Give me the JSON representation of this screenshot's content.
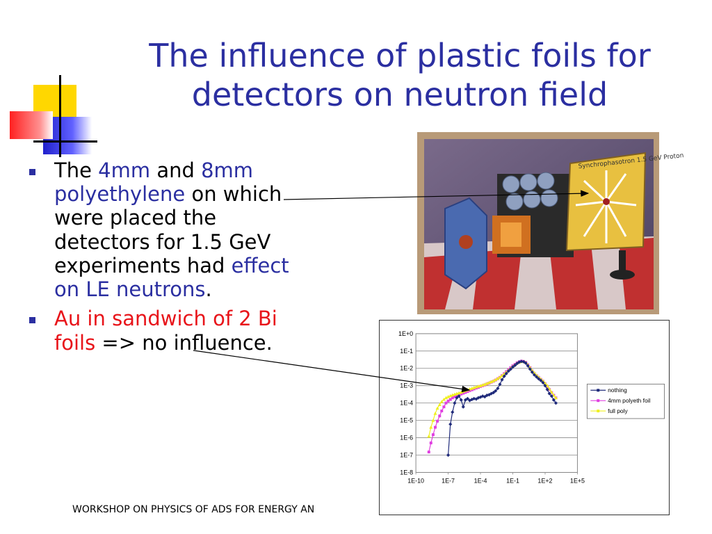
{
  "slide": {
    "title": "The influence of plastic foils for detectors on neutron field",
    "bullets": [
      {
        "parts": [
          {
            "text": "The ",
            "color": "black"
          },
          {
            "text": "4mm",
            "color": "blue"
          },
          {
            "text": " and ",
            "color": "black"
          },
          {
            "text": "8mm polyethylene",
            "color": "blue"
          },
          {
            "text": " on which were placed the detectors for 1.5 GeV experiments had ",
            "color": "black"
          },
          {
            "text": "effect on LE neutrons",
            "color": "blue"
          },
          {
            "text": ".",
            "color": "black"
          }
        ]
      },
      {
        "parts": [
          {
            "text": "Au in sandwich of 2 Bi foils",
            "color": "red"
          },
          {
            "text": " => no influence.",
            "color": "black"
          }
        ]
      }
    ],
    "photo_label": "Synchrophasotron 1.5 GeV Proton",
    "footer": "WORKSHOP ON PHYSICS OF ADS FOR ENERGY AN",
    "colors": {
      "title": "#2b2fa1",
      "highlight_blue": "#2b2fa1",
      "highlight_red": "#e8141a"
    }
  },
  "chart_data": {
    "type": "line",
    "title": "",
    "xlabel": "",
    "ylabel": "",
    "x_scale": "log",
    "y_scale": "log",
    "xlim": [
      1e-10,
      100000.0
    ],
    "ylim": [
      1e-08,
      1
    ],
    "x_ticks": [
      "1E-10",
      "1E-7",
      "1E-4",
      "1E-1",
      "1E+2",
      "1E+5"
    ],
    "y_ticks": [
      "1E+0",
      "1E-1",
      "1E-2",
      "1E-3",
      "1E-4",
      "1E-5",
      "1E-6",
      "1E-7",
      "1E-8"
    ],
    "grid": "horizontal",
    "legend": "right",
    "series": [
      {
        "name": "nothing",
        "color": "#1f2a7a",
        "marker": "diamond",
        "x": [
          1e-07,
          1.6e-07,
          2.5e-07,
          4e-07,
          6.3e-07,
          1e-06,
          1.6e-06,
          2.5e-06,
          4e-06,
          6.3e-06,
          1e-05,
          1.6e-05,
          2.5e-05,
          4e-05,
          6.3e-05,
          0.0001,
          0.00016,
          0.00025,
          0.0004,
          0.00063,
          0.001,
          0.0016,
          0.0025,
          0.004,
          0.0063,
          0.01,
          0.016,
          0.025,
          0.04,
          0.063,
          0.1,
          0.16,
          0.25,
          0.4,
          0.63,
          1,
          1.6,
          2.5,
          4,
          6.3,
          10,
          16,
          25,
          40,
          63,
          100,
          160,
          250,
          400,
          630,
          1000
        ],
        "y": [
          1e-07,
          6e-06,
          3e-05,
          0.0001,
          0.0002,
          0.00025,
          0.00015,
          6e-05,
          0.00015,
          0.00018,
          0.00014,
          0.00016,
          0.00018,
          0.00017,
          0.0002,
          0.00022,
          0.00025,
          0.00023,
          0.00028,
          0.0003,
          0.00035,
          0.0004,
          0.0005,
          0.0007,
          0.0012,
          0.0022,
          0.0035,
          0.005,
          0.007,
          0.009,
          0.012,
          0.015,
          0.019,
          0.023,
          0.025,
          0.024,
          0.02,
          0.014,
          0.009,
          0.006,
          0.0042,
          0.0032,
          0.0025,
          0.002,
          0.0015,
          0.001,
          0.0006,
          0.00035,
          0.00025,
          0.00015,
          0.0001
        ]
      },
      {
        "name": "4mm polyeth foil",
        "color": "#e040e0",
        "marker": "square",
        "x": [
          1.6e-09,
          2.5e-09,
          4e-09,
          6.3e-09,
          1e-08,
          1.6e-08,
          2.5e-08,
          4e-08,
          6.3e-08,
          1e-07,
          1.6e-07,
          2.5e-07,
          4e-07,
          6.3e-07,
          1e-06,
          1.6e-06,
          2.5e-06,
          4e-06,
          6.3e-06,
          1e-05,
          1.6e-05,
          2.5e-05,
          4e-05,
          6.3e-05,
          0.0001,
          0.00016,
          0.00025,
          0.0004,
          0.00063,
          0.001,
          0.0016,
          0.0025,
          0.004,
          0.0063,
          0.01,
          0.016,
          0.025,
          0.04,
          0.063,
          0.1,
          0.16,
          0.25,
          0.4,
          0.63,
          1,
          1.6,
          2.5,
          4,
          6.3,
          10,
          16,
          25,
          40,
          63,
          100,
          160,
          250,
          400,
          630,
          1000
        ],
        "y": [
          1.5e-07,
          5e-07,
          1.5e-06,
          4e-06,
          9e-06,
          1.8e-05,
          3.5e-05,
          6e-05,
          0.0001,
          0.00013,
          0.00016,
          0.0002,
          0.00023,
          0.00026,
          0.0003,
          0.00033,
          0.00037,
          0.00041,
          0.00046,
          0.00052,
          0.00058,
          0.00065,
          0.00073,
          0.0008,
          0.0009,
          0.001,
          0.0011,
          0.00125,
          0.0014,
          0.0016,
          0.0018,
          0.0021,
          0.0025,
          0.003,
          0.0038,
          0.005,
          0.0065,
          0.0085,
          0.011,
          0.014,
          0.017,
          0.021,
          0.024,
          0.026,
          0.025,
          0.022,
          0.016,
          0.011,
          0.007,
          0.005,
          0.0038,
          0.003,
          0.0023,
          0.0018,
          0.0013,
          0.0009,
          0.0006,
          0.0004,
          0.00028,
          0.0002
        ]
      },
      {
        "name": "full poly",
        "color": "#f0f020",
        "marker": "triangle",
        "x": [
          1.6e-09,
          2.5e-09,
          4e-09,
          6.3e-09,
          1e-08,
          1.6e-08,
          2.5e-08,
          4e-08,
          6.3e-08,
          1e-07,
          1.6e-07,
          2.5e-07,
          4e-07,
          6.3e-07,
          1e-06,
          1.6e-06,
          2.5e-06,
          4e-06,
          6.3e-06,
          1e-05,
          1.6e-05,
          2.5e-05,
          4e-05,
          6.3e-05,
          0.0001,
          0.00016,
          0.00025,
          0.0004,
          0.00063,
          0.001,
          0.0016,
          0.0025,
          0.004,
          0.0063,
          0.01,
          0.016,
          0.025,
          0.04,
          0.063,
          0.1,
          0.16,
          0.25,
          0.4,
          0.63,
          1,
          1.6,
          2.5,
          4,
          6.3,
          10,
          16,
          25,
          40,
          63,
          100,
          160,
          250,
          400,
          630,
          1000
        ],
        "y": [
          1.2e-06,
          4e-06,
          1e-05,
          2.5e-05,
          5e-05,
          8e-05,
          0.00012,
          0.00016,
          0.0002,
          0.00023,
          0.00026,
          0.00029,
          0.00032,
          0.00035,
          0.00038,
          0.00042,
          0.00047,
          0.00052,
          0.00058,
          0.00064,
          0.0007,
          0.00077,
          0.00085,
          0.00093,
          0.001,
          0.0011,
          0.0012,
          0.00135,
          0.0015,
          0.0017,
          0.0019,
          0.0022,
          0.0026,
          0.0031,
          0.0038,
          0.0048,
          0.006,
          0.0078,
          0.01,
          0.013,
          0.016,
          0.02,
          0.023,
          0.025,
          0.025,
          0.022,
          0.016,
          0.011,
          0.0075,
          0.0055,
          0.004,
          0.0031,
          0.0024,
          0.0019,
          0.0014,
          0.001,
          0.00065,
          0.00042,
          0.00028,
          0.0002
        ]
      }
    ]
  }
}
